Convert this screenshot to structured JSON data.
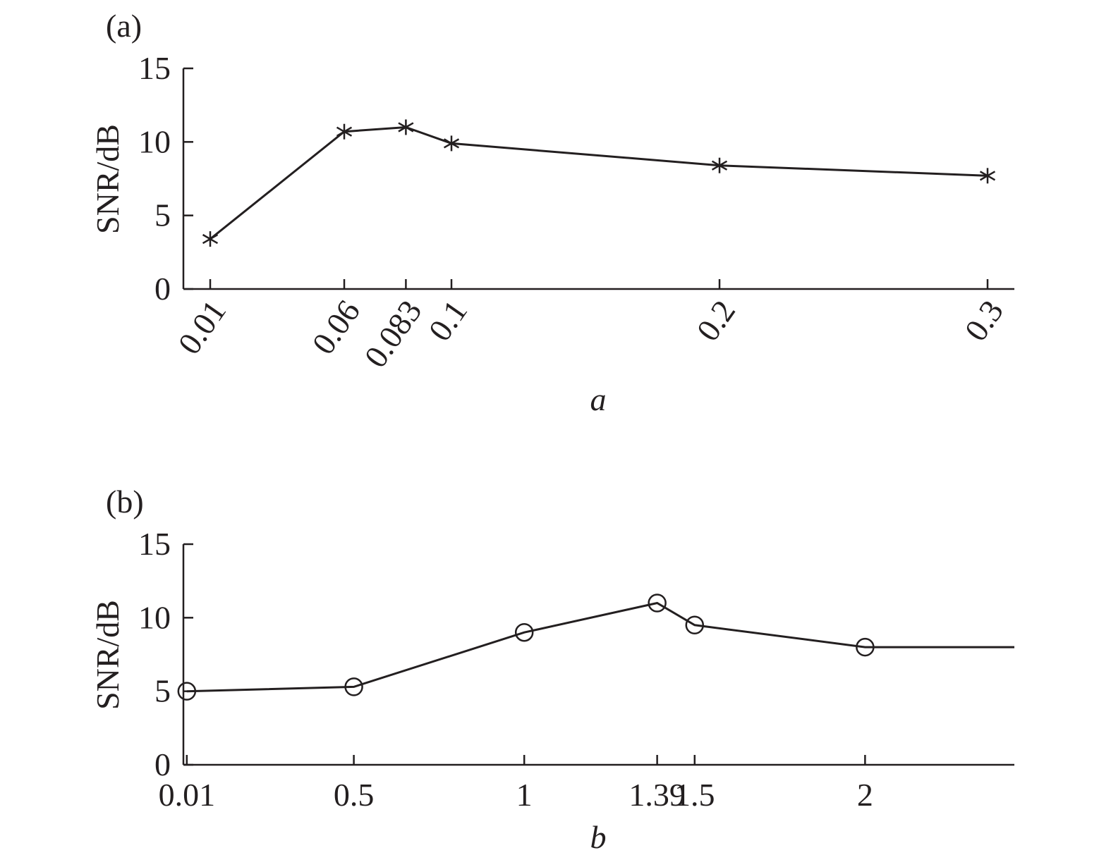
{
  "chart_data": [
    {
      "panel_label": "(a)",
      "type": "line",
      "xlabel": "a",
      "ylabel": "SNR/dB",
      "ylim": [
        0,
        15
      ],
      "yticks": [
        "0",
        "5",
        "10",
        "15"
      ],
      "xticks": [
        "0.01",
        "0.06",
        "0.083",
        "0.1",
        "0.2",
        "0.3"
      ],
      "x": [
        0.01,
        0.06,
        0.083,
        0.1,
        0.2,
        0.3
      ],
      "series": [
        {
          "marker": "star",
          "values": [
            3.4,
            10.7,
            11.0,
            9.9,
            8.4,
            7.7
          ]
        }
      ],
      "grid": false
    },
    {
      "panel_label": "(b)",
      "type": "line",
      "xlabel": "b",
      "ylabel": "SNR/dB",
      "ylim": [
        0,
        15
      ],
      "yticks": [
        "0",
        "5",
        "10",
        "15"
      ],
      "xticks": [
        "0.01",
        "0.5",
        "1",
        "1.39",
        "1.5",
        "2"
      ],
      "x": [
        0.01,
        0.5,
        1,
        1.39,
        1.5,
        2
      ],
      "series": [
        {
          "marker": "circle",
          "values": [
            5.0,
            5.3,
            9.0,
            11.0,
            9.5,
            8.0
          ],
          "extends_right_at": 8.0
        }
      ],
      "grid": false
    }
  ]
}
